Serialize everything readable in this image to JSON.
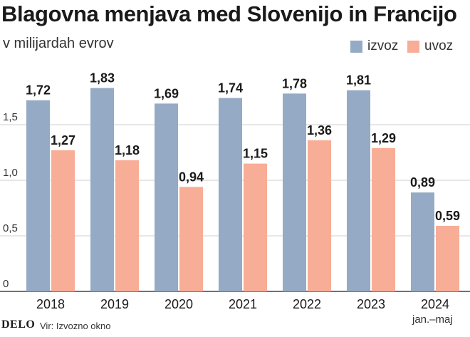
{
  "chart_data": {
    "type": "bar",
    "title": "Blagovna menjava med Slovenijo in Francijo",
    "subtitle": "v milijardah evrov",
    "categories": [
      "2018",
      "2019",
      "2020",
      "2021",
      "2022",
      "2023",
      "2024"
    ],
    "series": [
      {
        "name": "izvoz",
        "color": "#95aac4",
        "values": [
          1.72,
          1.83,
          1.69,
          1.74,
          1.78,
          1.81,
          0.89
        ],
        "labels": [
          "1,72",
          "1,83",
          "1,69",
          "1,74",
          "1,78",
          "1,81",
          "0,89"
        ]
      },
      {
        "name": "uvoz",
        "color": "#f8ad96",
        "values": [
          1.27,
          1.18,
          0.94,
          1.15,
          1.36,
          1.29,
          0.59
        ],
        "labels": [
          "1,27",
          "1,18",
          "0,94",
          "1,15",
          "1,36",
          "1,29",
          "0,59"
        ]
      }
    ],
    "yticks": [
      0,
      0.5,
      1.0,
      1.5
    ],
    "ytick_labels": [
      "0",
      "0,5",
      "1,0",
      "1,5"
    ],
    "ylim": [
      0,
      2.0
    ],
    "grid": true,
    "legend": "top-right",
    "xlabel": "",
    "ylabel": ""
  },
  "footnote": "jan.–maj",
  "footer": {
    "logo": "DELO",
    "source": "Vir: Izvozno okno"
  }
}
